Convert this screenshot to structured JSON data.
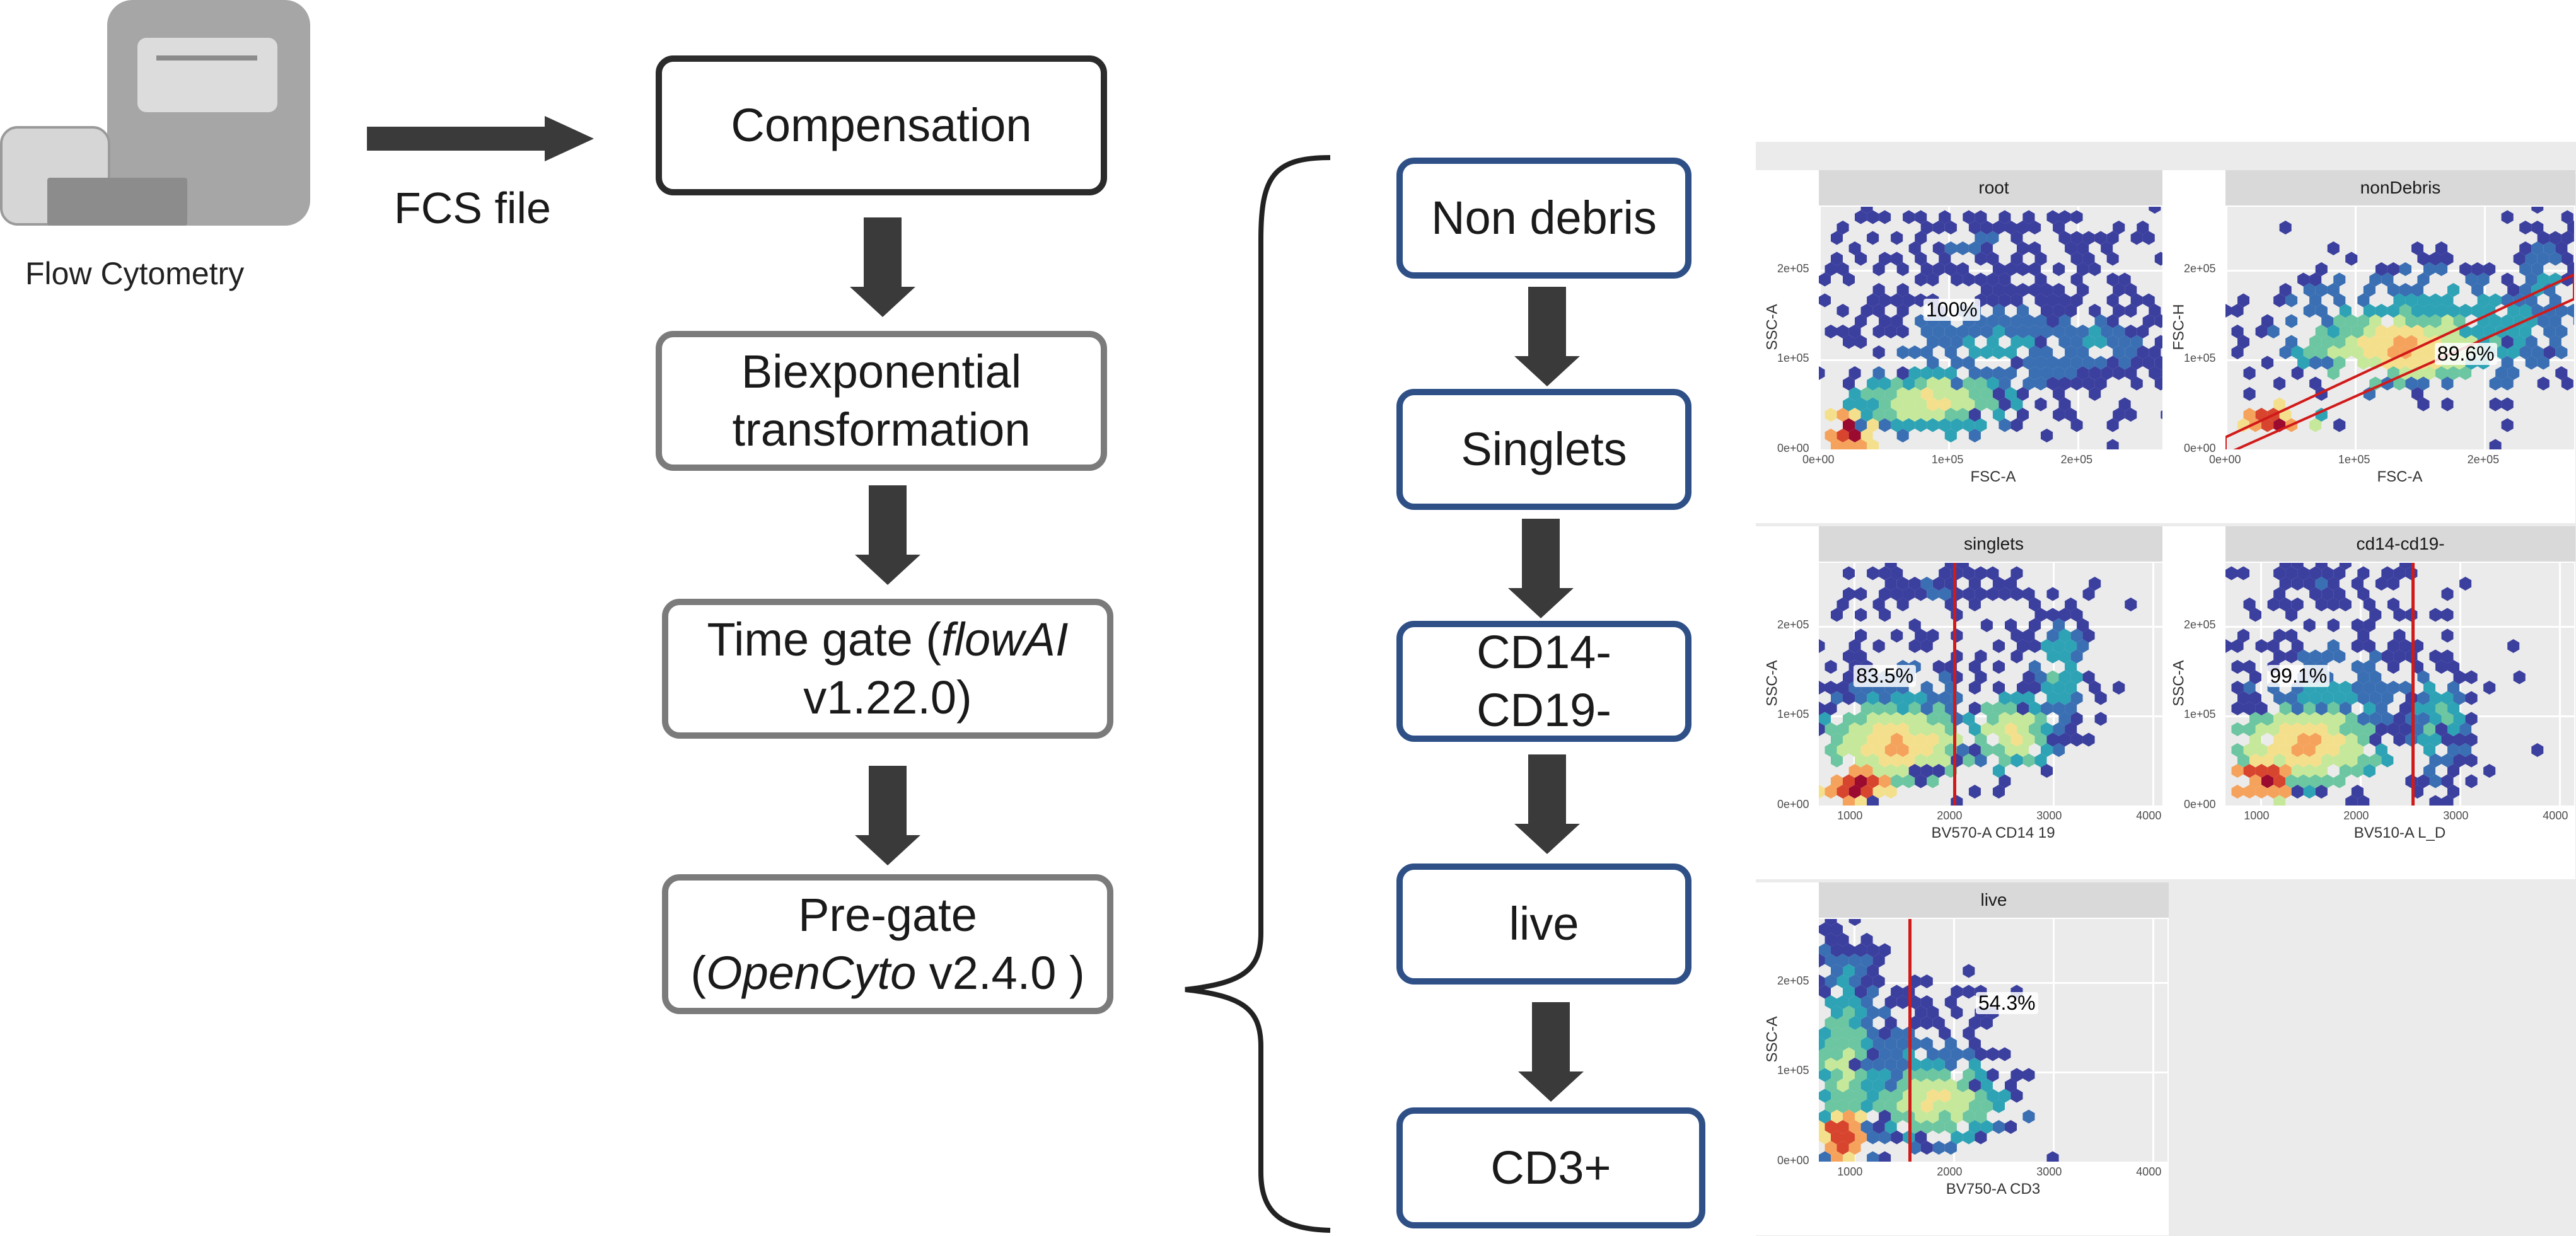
{
  "instrument": {
    "label": "Flow Cytometry"
  },
  "fcs_arrow_label": "FCS file",
  "pipeline": {
    "compensation": "Compensation",
    "biexponential_line1": "Biexponential",
    "biexponential_line2": "transformation",
    "timegate_pre": "Time gate (",
    "timegate_tool": "flowAI",
    "timegate_version": "v1.22.0)",
    "pregate_line1": "Pre-gate",
    "pregate_open": "(",
    "pregate_tool": "OpenCyto",
    "pregate_version": " v2.4.0 )"
  },
  "gates": {
    "non_debris": "Non debris",
    "singlets": "Singlets",
    "cd14_line1": "CD14-",
    "cd19_line2": "CD19-",
    "live": "live",
    "cd3": "CD3+"
  },
  "colors": {
    "box_dark": "#2b2b2b",
    "box_grey": "#7b7b7b",
    "box_blue": "#2e5086",
    "gate_line": "#d11a1a",
    "panel_bg": "#ebebeb",
    "strip_bg": "#d9d9d9",
    "density_palette": [
      "#3b3f9e",
      "#3a6fb3",
      "#2ea3b5",
      "#6cc6a1",
      "#c6e89b",
      "#f4e08c",
      "#f5a35c",
      "#d8452e",
      "#9b0a2f"
    ]
  },
  "chart_data": [
    {
      "type": "scatter",
      "title": "root",
      "xlabel": "FSC-A",
      "ylabel": "SSC-A",
      "x_ticks": [
        "0e+00",
        "1e+05",
        "2e+05"
      ],
      "y_ticks": [
        "0e+00",
        "1e+05",
        "2e+05"
      ],
      "xlim": [
        0,
        270000
      ],
      "ylim": [
        0,
        270000
      ],
      "gate_percent": "100%"
    },
    {
      "type": "scatter",
      "title": "nonDebris",
      "xlabel": "FSC-A",
      "ylabel": "FSC-H",
      "x_ticks": [
        "0e+00",
        "1e+05",
        "2e+05"
      ],
      "y_ticks": [
        "0e+00",
        "1e+05",
        "2e+05"
      ],
      "xlim": [
        0,
        270000
      ],
      "ylim": [
        0,
        270000
      ],
      "gate_percent": "89.6%"
    },
    {
      "type": "scatter",
      "title": "singlets",
      "xlabel": "BV570-A CD14 19",
      "ylabel": "SSC-A",
      "x_ticks": [
        "1000",
        "2000",
        "3000",
        "4000"
      ],
      "y_ticks": [
        "0e+00",
        "1e+05",
        "2e+05"
      ],
      "xlim": [
        650,
        4150
      ],
      "ylim": [
        0,
        270000
      ],
      "gate_x": 2000,
      "gate_percent": "83.5%"
    },
    {
      "type": "scatter",
      "title": "cd14-cd19-",
      "xlabel": "BV510-A L_D",
      "ylabel": "SSC-A",
      "x_ticks": [
        "1000",
        "2000",
        "3000",
        "4000"
      ],
      "y_ticks": [
        "0e+00",
        "1e+05",
        "2e+05"
      ],
      "xlim": [
        650,
        4150
      ],
      "ylim": [
        0,
        270000
      ],
      "gate_x": 2520,
      "gate_percent": "99.1%"
    },
    {
      "type": "scatter",
      "title": "live",
      "xlabel": "BV750-A CD3",
      "ylabel": "SSC-A",
      "x_ticks": [
        "1000",
        "2000",
        "3000",
        "4000"
      ],
      "y_ticks": [
        "0e+00",
        "1e+05",
        "2e+05"
      ],
      "xlim": [
        650,
        4150
      ],
      "ylim": [
        0,
        270000
      ],
      "gate_x": 1550,
      "gate_percent": "54.3%"
    }
  ]
}
